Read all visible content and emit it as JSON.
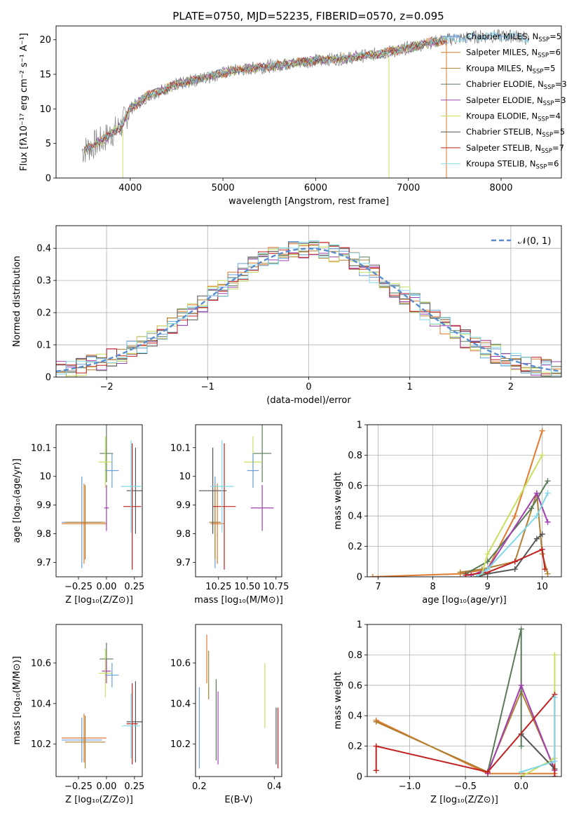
{
  "title": "PLATE=0750, MJD=52235, FIBERID=0570, z=0.095",
  "series_colors": [
    "#1f77b4",
    "#ff7f0e",
    "#8c6d31",
    "#2f6f3e",
    "#8e1f9e",
    "#d2d24a",
    "#333333",
    "#b30000",
    "#5ccbdc"
  ],
  "series_colors_alt": [
    "#6a9fd8",
    "#e07b30",
    "#b08030",
    "#5a7a5a",
    "#a040b0",
    "#c8e060",
    "#555555",
    "#c02020",
    "#80d8e8"
  ],
  "chart_data": [
    {
      "id": "spectrum",
      "type": "line",
      "xlabel": "wavelength [Angstrom, rest frame]",
      "ylabel": "Flux [fλ10⁻¹⁷ erg cm⁻² s⁻¹ A⁻¹]",
      "xlim": [
        3200,
        8650
      ],
      "ylim": [
        0,
        22
      ],
      "xticks": [
        4000,
        5000,
        6000,
        7000,
        8000
      ],
      "yticks": [
        0,
        5,
        10,
        15,
        20
      ],
      "grid": false,
      "legend": "top-right",
      "series": [
        {
          "name": "Chabrier MILES, NSSP=5",
          "name_main": "Chabrier MILES, N",
          "name_sub": "SSP",
          "name_tail": "=5"
        },
        {
          "name": "Salpeter MILES, NSSP=6",
          "name_main": "Salpeter MILES, N",
          "name_sub": "SSP",
          "name_tail": "=6"
        },
        {
          "name": "Kroupa MILES, NSSP=5",
          "name_main": "Kroupa MILES, N",
          "name_sub": "SSP",
          "name_tail": "=5"
        },
        {
          "name": "Chabrier ELODIE, NSSP=3",
          "name_main": "Chabrier ELODIE, N",
          "name_sub": "SSP",
          "name_tail": "=3"
        },
        {
          "name": "Salpeter ELODIE, NSSP=3",
          "name_main": "Salpeter ELODIE, N",
          "name_sub": "SSP",
          "name_tail": "=3"
        },
        {
          "name": "Kroupa ELODIE, NSSP=4",
          "name_main": "Kroupa ELODIE, N",
          "name_sub": "SSP",
          "name_tail": "=4"
        },
        {
          "name": "Chabrier STELIB, NSSP=5",
          "name_main": "Chabrier STELIB, N",
          "name_sub": "SSP",
          "name_tail": "=5"
        },
        {
          "name": "Salpeter STELIB, NSSP=7",
          "name_main": "Salpeter STELIB, N",
          "name_sub": "SSP",
          "name_tail": "=7"
        },
        {
          "name": "Kroupa STELIB, NSSP=6",
          "name_main": "Kroupa STELIB, N",
          "name_sub": "SSP",
          "name_tail": "=6"
        }
      ],
      "continuum": {
        "x": [
          3500,
          3700,
          3900,
          4000,
          4200,
          4500,
          4800,
          5100,
          5400,
          5700,
          6000,
          6300,
          6600,
          6900,
          7200,
          7400,
          7800,
          8200,
          8300
        ],
        "y": [
          4.0,
          5.5,
          7.5,
          10.0,
          12.0,
          13.5,
          14.5,
          15.5,
          16.0,
          16.5,
          17.0,
          17.3,
          17.8,
          18.5,
          19.5,
          20.0,
          20.5,
          20.5,
          20.0
        ]
      }
    },
    {
      "id": "residuals",
      "type": "step",
      "xlabel": "(data-model)/error",
      "ylabel": "Normed distribution",
      "xlim": [
        -2.5,
        2.5
      ],
      "ylim": [
        0,
        0.47
      ],
      "xticks": [
        -2,
        -1,
        0,
        1,
        2
      ],
      "yticks": [
        0.0,
        0.1,
        0.2,
        0.3,
        0.4
      ],
      "grid": true,
      "legend": "top-right",
      "reference_label": "𝒩(0, 1)",
      "gaussian": {
        "mean": 0,
        "sigma": 1
      }
    },
    {
      "id": "age_vs_Z",
      "type": "errorbar",
      "xlabel": "Z [log₁₀(Z/Z⊙)]",
      "ylabel": "age  [log₁₀(age/yr)]",
      "xlim": [
        -0.45,
        0.32
      ],
      "ylim": [
        9.65,
        10.18
      ],
      "xticks": [
        -0.25,
        0.0,
        0.25
      ],
      "xticklabels": [
        "−0.25",
        "0.00",
        "0.25"
      ],
      "yticks": [
        9.7,
        9.8,
        9.9,
        10.0,
        10.1
      ],
      "grid": false,
      "points": [
        {
          "x": -0.22,
          "xerr": 0.18,
          "y": 9.84,
          "yerr": 0.16
        },
        {
          "x": -0.2,
          "xerr": 0.2,
          "y": 9.835,
          "yerr": 0.14
        },
        {
          "x": -0.19,
          "xerr": 0.18,
          "y": 9.84,
          "yerr": 0.13
        },
        {
          "x": 0.0,
          "xerr": 0.06,
          "y": 10.08,
          "yerr": 0.1
        },
        {
          "x": 0.0,
          "xerr": 0.02,
          "y": 9.89,
          "yerr": 0.08
        },
        {
          "x": -0.01,
          "xerr": 0.06,
          "y": 10.05,
          "yerr": 0.09
        },
        {
          "x": 0.26,
          "xerr": 0.08,
          "y": 9.95,
          "yerr": 0.15
        },
        {
          "x": 0.23,
          "xerr": 0.08,
          "y": 9.895,
          "yerr": 0.22
        },
        {
          "x": 0.22,
          "xerr": 0.09,
          "y": 9.965,
          "yerr": 0.16
        },
        {
          "x": 0.05,
          "xerr": 0.06,
          "y": 10.02,
          "yerr": 0.06
        }
      ]
    },
    {
      "id": "age_vs_mass",
      "type": "errorbar",
      "xlabel": "mass [log₁₀(M/M⊙)]",
      "ylabel": "",
      "xlim": [
        10.05,
        10.8
      ],
      "ylim": [
        9.65,
        10.18
      ],
      "xticks": [
        10.25,
        10.5,
        10.75
      ],
      "xticklabels": [
        "10.25",
        "10.50",
        "10.75"
      ],
      "yticks": [
        9.7,
        9.8,
        9.9,
        10.0,
        10.1
      ],
      "grid": false,
      "points": [
        {
          "x": 10.22,
          "xerr": 0.05,
          "y": 9.84,
          "yerr": 0.16
        },
        {
          "x": 10.24,
          "xerr": 0.06,
          "y": 9.835,
          "yerr": 0.14
        },
        {
          "x": 10.22,
          "xerr": 0.05,
          "y": 9.84,
          "yerr": 0.13
        },
        {
          "x": 10.63,
          "xerr": 0.08,
          "y": 10.08,
          "yerr": 0.1
        },
        {
          "x": 10.63,
          "xerr": 0.1,
          "y": 9.89,
          "yerr": 0.08
        },
        {
          "x": 10.55,
          "xerr": 0.08,
          "y": 10.05,
          "yerr": 0.09
        },
        {
          "x": 10.2,
          "xerr": 0.12,
          "y": 9.95,
          "yerr": 0.15
        },
        {
          "x": 10.3,
          "xerr": 0.1,
          "y": 9.895,
          "yerr": 0.22
        },
        {
          "x": 10.28,
          "xerr": 0.1,
          "y": 9.965,
          "yerr": 0.16
        },
        {
          "x": 10.55,
          "xerr": 0.05,
          "y": 10.02,
          "yerr": 0.06
        }
      ]
    },
    {
      "id": "weight_vs_age",
      "type": "line",
      "xlabel": "age  [log₁₀(age/yr)]",
      "ylabel": "mass weight",
      "xlim": [
        6.8,
        10.35
      ],
      "ylim": [
        0,
        1.0
      ],
      "xticks": [
        7,
        8,
        9,
        10
      ],
      "yticks": [
        0.0,
        0.2,
        0.4,
        0.6,
        0.8,
        1.0
      ],
      "grid": true,
      "series": [
        {
          "x": [
            6.9,
            8.5,
            9.0,
            9.5,
            10.0
          ],
          "y": [
            0.0,
            0.02,
            0.05,
            0.4,
            0.96
          ]
        },
        {
          "x": [
            8.5,
            8.9,
            9.5,
            9.9,
            10.0,
            10.1
          ],
          "y": [
            0.03,
            0.05,
            0.1,
            0.55,
            0.15,
            0.02
          ]
        },
        {
          "x": [
            8.6,
            9.0,
            9.8,
            10.1
          ],
          "y": [
            0.02,
            0.1,
            0.45,
            0.63
          ]
        },
        {
          "x": [
            8.7,
            9.0,
            9.9,
            10.1
          ],
          "y": [
            0.01,
            0.05,
            0.55,
            0.36
          ]
        },
        {
          "x": [
            8.9,
            9.0,
            10.0
          ],
          "y": [
            0.02,
            0.15,
            0.8
          ]
        },
        {
          "x": [
            8.8,
            9.0,
            9.5,
            9.9,
            10.0
          ],
          "y": [
            0.0,
            0.02,
            0.05,
            0.25,
            0.28
          ]
        },
        {
          "x": [
            8.6,
            9.0,
            9.5,
            10.0,
            10.05
          ],
          "y": [
            0.01,
            0.03,
            0.1,
            0.18,
            0.05
          ]
        },
        {
          "x": [
            8.8,
            9.0,
            9.9,
            10.1
          ],
          "y": [
            0.0,
            0.05,
            0.4,
            0.55
          ]
        }
      ]
    },
    {
      "id": "mass_vs_Z",
      "type": "errorbar",
      "xlabel": "Z [log₁₀(Z/Z⊙)]",
      "ylabel": "mass [log₁₀(M/M⊙)]",
      "xlim": [
        -0.45,
        0.32
      ],
      "ylim": [
        10.04,
        10.79
      ],
      "xticks": [
        -0.25,
        0.0,
        0.25
      ],
      "xticklabels": [
        "−0.25",
        "0.00",
        "0.25"
      ],
      "yticks": [
        10.2,
        10.4,
        10.6
      ],
      "grid": false,
      "points": [
        {
          "x": -0.22,
          "xerr": 0.18,
          "y": 10.22,
          "yerr": 0.11
        },
        {
          "x": -0.2,
          "xerr": 0.2,
          "y": 10.23,
          "yerr": 0.12
        },
        {
          "x": -0.19,
          "xerr": 0.18,
          "y": 10.21,
          "yerr": 0.13
        },
        {
          "x": 0.0,
          "xerr": 0.06,
          "y": 10.62,
          "yerr": 0.08
        },
        {
          "x": 0.0,
          "xerr": 0.04,
          "y": 10.56,
          "yerr": 0.06
        },
        {
          "x": -0.01,
          "xerr": 0.06,
          "y": 10.55,
          "yerr": 0.12
        },
        {
          "x": 0.26,
          "xerr": 0.08,
          "y": 10.31,
          "yerr": 0.2
        },
        {
          "x": 0.23,
          "xerr": 0.05,
          "y": 10.3,
          "yerr": 0.2
        },
        {
          "x": 0.22,
          "xerr": 0.08,
          "y": 10.29,
          "yerr": 0.16
        },
        {
          "x": 0.05,
          "xerr": 0.06,
          "y": 10.54,
          "yerr": 0.06
        }
      ]
    },
    {
      "id": "mass_vs_ebv",
      "type": "errorbar",
      "xlabel": "E(B-V)",
      "ylabel": "",
      "xlim": [
        0.19,
        0.42
      ],
      "ylim": [
        10.04,
        10.79
      ],
      "xticks": [
        0.2,
        0.4
      ],
      "xticklabels": [
        "0.2",
        "0.4"
      ],
      "yticks": [
        10.2,
        10.4,
        10.6
      ],
      "grid": false,
      "points": [
        {
          "x": 0.2,
          "xerr": 0.0,
          "y": 10.28,
          "yerr": 0.2
        },
        {
          "x": 0.22,
          "xerr": 0.0,
          "y": 10.62,
          "yerr": 0.12
        },
        {
          "x": 0.225,
          "xerr": 0.0,
          "y": 10.54,
          "yerr": 0.12
        },
        {
          "x": 0.245,
          "xerr": 0.0,
          "y": 10.32,
          "yerr": 0.2
        },
        {
          "x": 0.25,
          "xerr": 0.0,
          "y": 10.28,
          "yerr": 0.18
        },
        {
          "x": 0.375,
          "xerr": 0.0,
          "y": 10.44,
          "yerr": 0.16
        },
        {
          "x": 0.405,
          "xerr": 0.0,
          "y": 10.24,
          "yerr": 0.14
        },
        {
          "x": 0.41,
          "xerr": 0.0,
          "y": 10.23,
          "yerr": 0.15
        }
      ]
    },
    {
      "id": "weight_vs_Z",
      "type": "line",
      "xlabel": "Z [log₁₀(Z/Z⊙)]",
      "ylabel": "mass weight",
      "xlim": [
        -1.38,
        0.36
      ],
      "ylim": [
        0,
        1.0
      ],
      "xticks": [
        -1.0,
        -0.5,
        0.0
      ],
      "xticklabels": [
        "−1.0",
        "−0.5",
        "0.0"
      ],
      "yticks": [
        0.0,
        0.2,
        0.4,
        0.6,
        0.8,
        1.0
      ],
      "grid": true,
      "series": [
        {
          "x": [
            -1.3,
            -0.3,
            0.0,
            0.3
          ],
          "y": [
            0.37,
            0.02,
            0.02,
            0.02
          ]
        },
        {
          "x": [
            -1.3,
            -0.3,
            0.0,
            0.3
          ],
          "y": [
            0.36,
            0.03,
            0.56,
            0.05
          ]
        },
        {
          "x": [
            -0.3,
            0.0,
            0.0
          ],
          "y": [
            0.03,
            0.97,
            0.2
          ]
        },
        {
          "x": [
            -0.3,
            0.0,
            0.3
          ],
          "y": [
            0.02,
            0.6,
            0.04
          ]
        },
        {
          "x": [
            0.0,
            0.3,
            0.3
          ],
          "y": [
            0.0,
            0.12,
            0.8
          ]
        },
        {
          "x": [
            0.0,
            0.3
          ],
          "y": [
            0.28,
            0.05
          ]
        },
        {
          "x": [
            -1.3,
            -1.3,
            -0.3,
            0.3,
            0.3
          ],
          "y": [
            0.04,
            0.2,
            0.03,
            0.54,
            0.0
          ]
        },
        {
          "x": [
            0.0,
            0.3,
            0.3
          ],
          "y": [
            0.03,
            0.1,
            0.52
          ]
        }
      ]
    }
  ]
}
